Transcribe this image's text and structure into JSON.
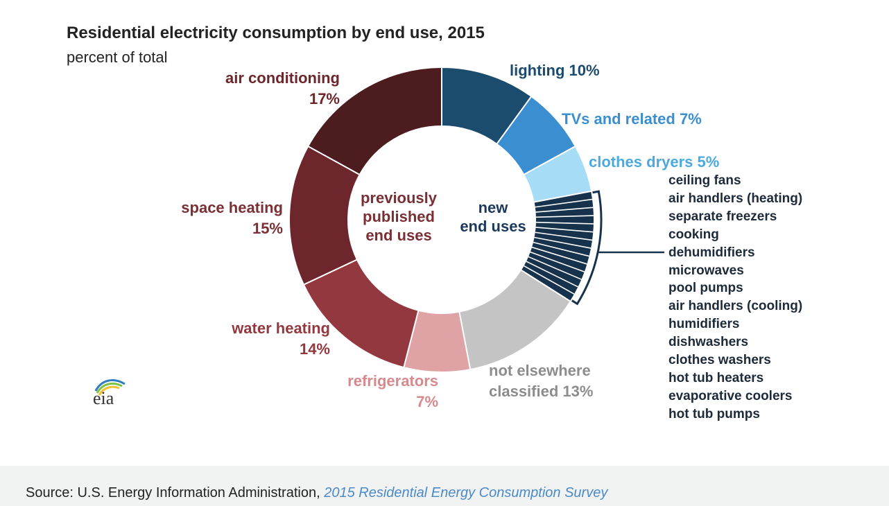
{
  "chart_data": {
    "type": "pie",
    "title": "Residential electricity consumption by end use, 2015",
    "subtitle": "percent of total",
    "center_labels": {
      "left": [
        "previously",
        "published",
        "end uses"
      ],
      "right": [
        "new",
        "end uses"
      ]
    },
    "slices": [
      {
        "label": "lighting",
        "pct_text": "10%",
        "value": 10,
        "color": "#1b4b6d"
      },
      {
        "label": "TVs and related",
        "pct_text": "7%",
        "value": 7,
        "color": "#3b8fd0"
      },
      {
        "label": "clothes dryers",
        "pct_text": "5%",
        "value": 5,
        "color": "#a7dcf7"
      },
      {
        "label": "new end uses",
        "pct_text": "",
        "value": 12,
        "color": "#16324c"
      },
      {
        "label": "not elsewhere classified",
        "pct_text": "13%",
        "value": 13,
        "color": "#c4c4c4"
      },
      {
        "label": "refrigerators",
        "pct_text": "7%",
        "value": 7,
        "color": "#dfa3a6"
      },
      {
        "label": "water heating",
        "pct_text": "14%",
        "value": 14,
        "color": "#943840"
      },
      {
        "label": "space heating",
        "pct_text": "15%",
        "value": 15,
        "color": "#6d262b"
      },
      {
        "label": "air conditioning",
        "pct_text": "17%",
        "value": 17,
        "color": "#4c1c1f"
      }
    ],
    "new_end_uses": [
      "ceiling fans",
      "air handlers (heating)",
      "separate freezers",
      "cooking",
      "dehumidifiers",
      "microwaves",
      "pool pumps",
      "air handlers (cooling)",
      "humidifiers",
      "dishwashers",
      "clothes washers",
      "hot tub heaters",
      "evaporative coolers",
      "hot tub pumps"
    ],
    "label_colors": {
      "lighting": "#1b4b6d",
      "TVs and related": "#3b8fd0",
      "clothes dryers": "#4aa9e0",
      "not elsewhere classified": "#8c8c8c",
      "refrigerators": "#d8898e",
      "water heating": "#943840",
      "space heating": "#7a2f34",
      "air conditioning": "#6d262b"
    }
  },
  "logo": {
    "text": "eia"
  },
  "footer": {
    "source_prefix": "Source: U.S. Energy Information Administration, ",
    "source_link": "2015 Residential Energy Consumption Survey"
  }
}
